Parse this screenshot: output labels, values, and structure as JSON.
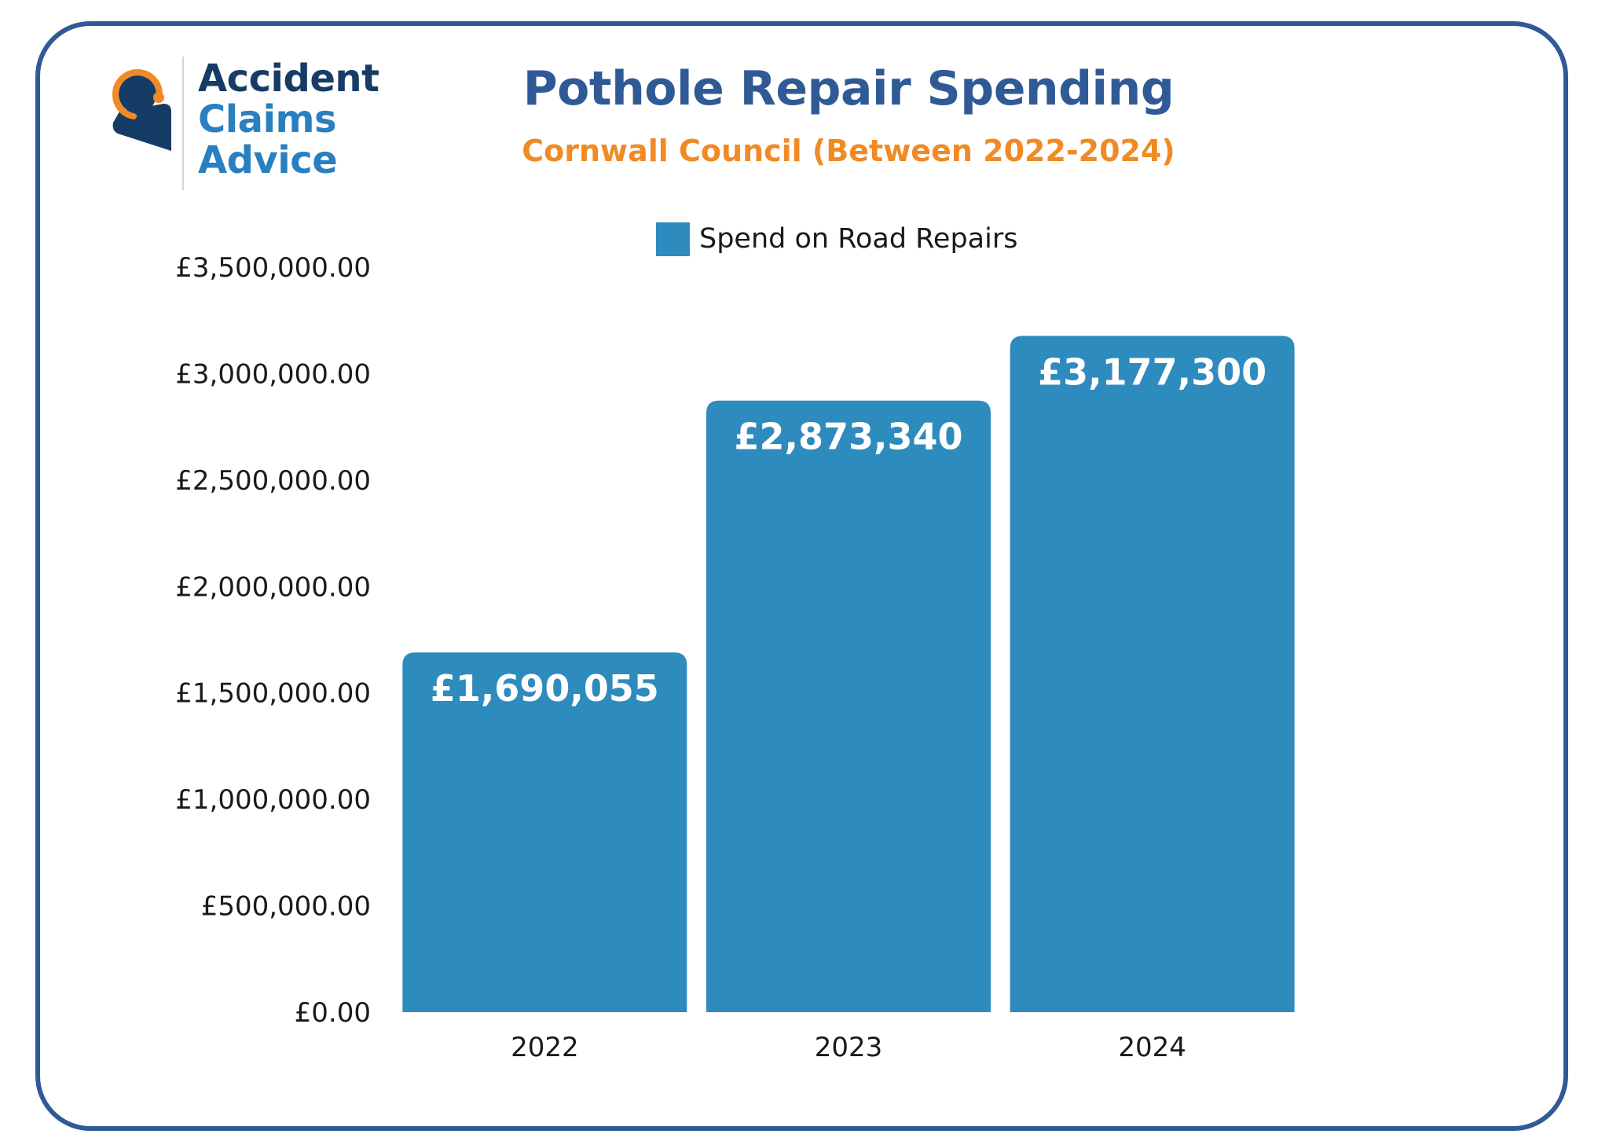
{
  "logo": {
    "line1": "Accident",
    "line2": "Claims",
    "line3": "Advice",
    "icon": "headset-person-icon"
  },
  "chart_data": {
    "type": "bar",
    "title": "Pothole Repair Spending",
    "subtitle": "Cornwall Council (Between 2022-2024)",
    "categories": [
      "2022",
      "2023",
      "2024"
    ],
    "series": [
      {
        "name": "Spend on Road Repairs",
        "values": [
          1690055,
          2873340,
          3177300
        ],
        "labels": [
          "£1,690,055",
          "£2,873,340",
          "£3,177,300"
        ],
        "color": "#2e8bbd"
      }
    ],
    "ylim": [
      0,
      3500000
    ],
    "yticks": [
      0,
      500000,
      1000000,
      1500000,
      2000000,
      2500000,
      3000000,
      3500000
    ],
    "ytick_labels": [
      "£0.00",
      "£500,000.00",
      "£1,000,000.00",
      "£1,500,000.00",
      "£2,000,000.00",
      "£2,500,000.00",
      "£3,000,000.00",
      "£3,500,000.00"
    ],
    "xlabel": "",
    "ylabel": "",
    "grid": false,
    "legend_position": "top-center"
  },
  "colors": {
    "frame": "#2f5a96",
    "title": "#2f5a96",
    "subtitle": "#f08a24",
    "bar": "#2e8bbd",
    "logo_dark": "#163c66",
    "logo_light": "#2a7fbf",
    "logo_orange": "#f08a24"
  }
}
